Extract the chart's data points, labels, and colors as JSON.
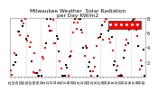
{
  "title": "Milwaukee Weather  Solar Radiation\nper Day KW/m2",
  "title_fontsize": 4.2,
  "background_color": "#ffffff",
  "plot_bg_color": "#ffffff",
  "ylim": [
    0,
    8
  ],
  "ytick_values": [
    2,
    4,
    6,
    8
  ],
  "ytick_fontsize": 3.5,
  "xtick_fontsize": 2.8,
  "red_dot_color": "#ff0000",
  "black_dot_color": "#000000",
  "grid_color": "#b0b0b0",
  "legend_bg": "#ff0000",
  "marker_size": 1.5,
  "seed": 42,
  "n_points": 115,
  "n_years": 5,
  "n_vlines": 9
}
